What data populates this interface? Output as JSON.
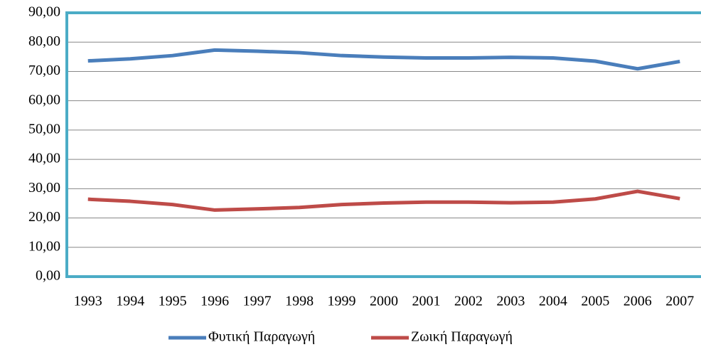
{
  "chart_data": {
    "type": "line",
    "categories": [
      "1993",
      "1994",
      "1995",
      "1996",
      "1997",
      "1998",
      "1999",
      "2000",
      "2001",
      "2002",
      "2003",
      "2004",
      "2005",
      "2006",
      "2007"
    ],
    "series": [
      {
        "name": "Φυτική Παραγωγή",
        "color": "#4a7ebb",
        "values": [
          73.6,
          74.3,
          75.4,
          77.3,
          76.9,
          76.4,
          75.4,
          74.9,
          74.6,
          74.6,
          74.8,
          74.6,
          73.5,
          70.9,
          73.4
        ]
      },
      {
        "name": "Ζωική Παραγωγή",
        "color": "#be4b48",
        "values": [
          26.4,
          25.7,
          24.6,
          22.7,
          23.1,
          23.6,
          24.6,
          25.1,
          25.4,
          25.4,
          25.2,
          25.4,
          26.5,
          29.1,
          26.6
        ]
      }
    ],
    "ylim": [
      0,
      90
    ],
    "yticks": [
      {
        "value": 0,
        "label": "0,00"
      },
      {
        "value": 10,
        "label": "10,00"
      },
      {
        "value": 20,
        "label": "20,00"
      },
      {
        "value": 30,
        "label": "30,00"
      },
      {
        "value": 40,
        "label": "40,00"
      },
      {
        "value": 50,
        "label": "50,00"
      },
      {
        "value": 60,
        "label": "60,00"
      },
      {
        "value": 70,
        "label": "70,00"
      },
      {
        "value": 80,
        "label": "80,00"
      },
      {
        "value": 90,
        "label": "90,00"
      }
    ],
    "grid": true,
    "legend": "bottom"
  }
}
